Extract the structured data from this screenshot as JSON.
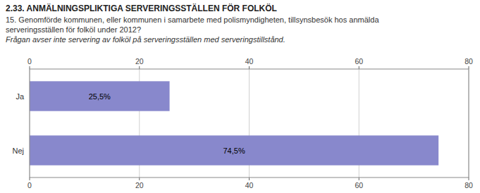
{
  "chart_data": {
    "type": "bar",
    "orientation": "horizontal",
    "title": "2.33. ANMÄLNINGSPLIKTIGA SERVERINGSSTÄLLEN FÖR FOLKÖL",
    "subtitle": [
      "15. Genomförde kommunen, eller kommunen i samarbete med polismyndigheten, tillsynsbesök hos anmälda",
      "serveringsställen för folköl under 2012?"
    ],
    "annotations": [
      "Frågan avser inte servering av folköl på serveringsställen med serveringstillstånd."
    ],
    "categories": [
      "Ja",
      "Nej"
    ],
    "values": [
      25.5,
      74.5
    ],
    "value_labels": [
      "25,5%",
      "74,5%"
    ],
    "data_labels": true,
    "color": "#8888cc",
    "xlim": [
      0,
      80
    ],
    "xticks": [
      0,
      20,
      40,
      60,
      80
    ],
    "grid": true
  }
}
